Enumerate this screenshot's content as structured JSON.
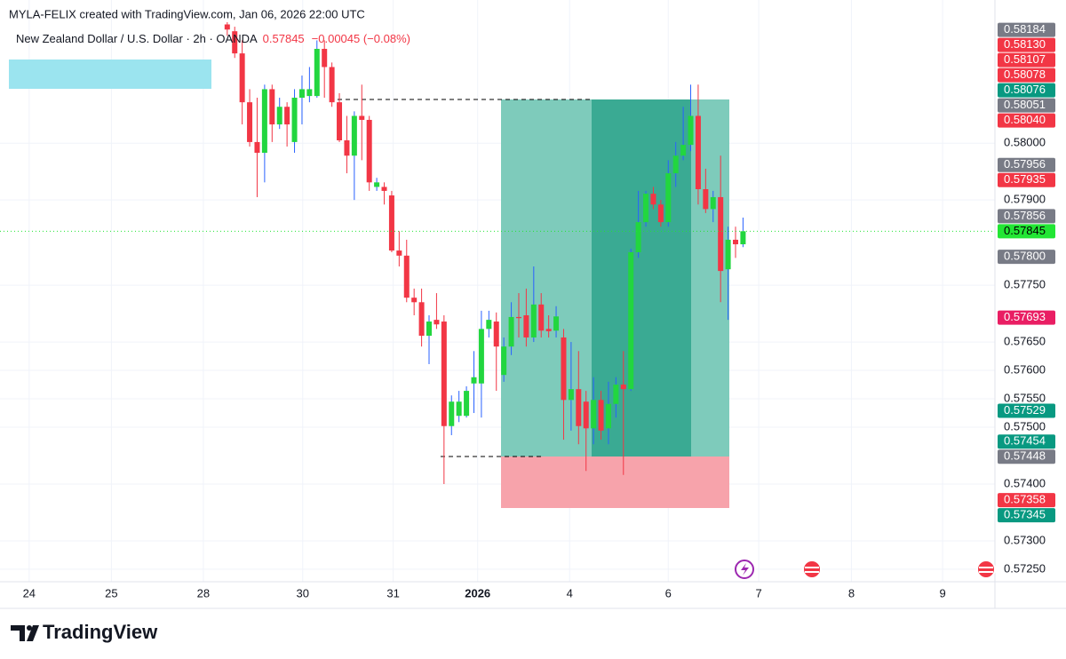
{
  "chart_data": {
    "type": "candlestick",
    "attribution": "MYLA-FELIX created with TradingView.com, Jan 06, 2026 22:00 UTC",
    "title": "New Zealand Dollar / U.S. Dollar · 2h · OANDA",
    "last_price": 0.57845,
    "change": "−0.00045 (−0.08%)",
    "brand": "TradingView",
    "up_color": "#22d63f",
    "down_color": "#f23645",
    "up_wick_color": "#2962ff",
    "last_price_color": "#22e634",
    "grid": true,
    "x": [
      0,
      1,
      2,
      3,
      4,
      5,
      6,
      7,
      8,
      9,
      10,
      11,
      12,
      13,
      14,
      15,
      16,
      17,
      18,
      19,
      20,
      21,
      22,
      23,
      24,
      25,
      26,
      27,
      28,
      29,
      30,
      31,
      32,
      33,
      34,
      35,
      36,
      37,
      38,
      39,
      40,
      41,
      42,
      43,
      44,
      45,
      46,
      47,
      48,
      49,
      50,
      51,
      52,
      53,
      54,
      55,
      56,
      57,
      58,
      59,
      60,
      61,
      62,
      63,
      64,
      65,
      66,
      67,
      68,
      69
    ],
    "open": [
      0.58209,
      0.58197,
      0.58158,
      0.58072,
      0.58002,
      0.57983,
      0.58095,
      0.58033,
      0.58064,
      0.58002,
      0.5808,
      0.58083,
      0.58083,
      0.58166,
      0.58134,
      0.58072,
      0.58005,
      0.57978,
      0.58048,
      0.58041,
      0.57923,
      0.57923,
      0.57908,
      0.57811,
      0.57802,
      0.57728,
      0.5772,
      0.57661,
      0.57689,
      0.57686,
      0.57502,
      0.5752,
      0.5752,
      0.57577,
      0.57577,
      0.57673,
      0.57686,
      0.57592,
      0.57642,
      0.57694,
      0.57697,
      0.57658,
      0.57716,
      0.57673,
      0.5767,
      0.57658,
      0.57548,
      0.57567,
      0.57545,
      0.57498,
      0.57548,
      0.57498,
      0.57541,
      0.57575,
      0.57567,
      0.57808,
      0.57861,
      0.57911,
      0.57892,
      0.57861,
      0.57947,
      0.57978,
      0.57997,
      0.58048,
      0.57919,
      0.57884,
      0.57905,
      0.57778,
      0.5783,
      0.57822
    ],
    "high": [
      0.58213,
      0.58205,
      0.58181,
      0.58095,
      0.5808,
      0.58103,
      0.58103,
      0.5808,
      0.58072,
      0.58095,
      0.58119,
      0.58134,
      0.58181,
      0.58181,
      0.58142,
      0.58088,
      0.58048,
      0.58056,
      0.58103,
      0.58048,
      0.57939,
      0.57931,
      0.57916,
      0.57845,
      0.5783,
      0.57744,
      0.57744,
      0.57697,
      0.57736,
      0.57697,
      0.57556,
      0.57564,
      0.57572,
      0.57634,
      0.57705,
      0.57705,
      0.57702,
      0.57658,
      0.5772,
      0.57736,
      0.57744,
      0.57783,
      0.57736,
      0.57697,
      0.57713,
      0.57673,
      0.5765,
      0.57634,
      0.57564,
      0.57588,
      0.57564,
      0.5758,
      0.57588,
      0.57634,
      0.57814,
      0.57916,
      0.57916,
      0.57923,
      0.579,
      0.5797,
      0.58002,
      0.58064,
      0.58103,
      0.58103,
      0.57955,
      0.57916,
      0.57978,
      0.57853,
      0.57853,
      0.57869
    ],
    "low": [
      0.58189,
      0.5815,
      0.58033,
      0.57994,
      0.57905,
      0.57931,
      0.58002,
      0.58025,
      0.57994,
      0.57983,
      0.58033,
      0.58072,
      0.5808,
      0.5808,
      0.58064,
      0.58002,
      0.57947,
      0.579,
      0.5797,
      0.57916,
      0.57916,
      0.57892,
      0.57808,
      0.57783,
      0.5772,
      0.57697,
      0.57642,
      0.57611,
      0.57673,
      0.574,
      0.57486,
      0.57509,
      0.57517,
      0.57525,
      0.57517,
      0.57658,
      0.57564,
      0.5758,
      0.57627,
      0.57658,
      0.57642,
      0.5765,
      0.57658,
      0.57658,
      0.57658,
      0.57478,
      0.57494,
      0.5747,
      0.57423,
      0.5747,
      0.57478,
      0.5747,
      0.57517,
      0.57416,
      0.57564,
      0.57798,
      0.57853,
      0.57884,
      0.57853,
      0.57853,
      0.57923,
      0.5797,
      0.57986,
      0.57892,
      0.57877,
      0.57861,
      0.5772,
      0.57689,
      0.57798,
      0.57817
    ],
    "close": [
      0.582,
      0.58158,
      0.58072,
      0.58002,
      0.57983,
      0.58095,
      0.58033,
      0.58064,
      0.58033,
      0.5808,
      0.58095,
      0.58095,
      0.58166,
      0.58134,
      0.58072,
      0.58005,
      0.57978,
      0.58048,
      0.58041,
      0.57931,
      0.57931,
      0.57916,
      0.57811,
      0.57802,
      0.57728,
      0.5772,
      0.57661,
      0.57686,
      0.57681,
      0.57502,
      0.57545,
      0.57545,
      0.57564,
      0.57588,
      0.57673,
      0.57689,
      0.57642,
      0.57642,
      0.57694,
      0.57692,
      0.57658,
      0.57716,
      0.5767,
      0.57669,
      0.57695,
      0.57548,
      0.57567,
      0.57502,
      0.57498,
      0.57548,
      0.57494,
      0.57541,
      0.57575,
      0.57567,
      0.57808,
      0.57861,
      0.57911,
      0.57892,
      0.57861,
      0.57947,
      0.57978,
      0.57997,
      0.58048,
      0.57919,
      0.57884,
      0.57905,
      0.57775,
      0.5783,
      0.57822,
      0.57845
    ],
    "xlim": [
      -30.4,
      102.7
    ],
    "xticks": [
      {
        "value": -26.5,
        "label": "24"
      },
      {
        "value": -15.5,
        "label": "25"
      },
      {
        "value": -3.2,
        "label": "28"
      },
      {
        "value": 10.1,
        "label": "30"
      },
      {
        "value": 22.2,
        "label": "31"
      },
      {
        "value": 33.5,
        "label": "2026"
      },
      {
        "value": 45.8,
        "label": "4"
      },
      {
        "value": 59,
        "label": "6"
      },
      {
        "value": 71.1,
        "label": "7"
      },
      {
        "value": 83.5,
        "label": "8"
      },
      {
        "value": 95.7,
        "label": "9"
      }
    ],
    "ylim": [
      0.57228,
      0.58252
    ],
    "yticks": [
      {
        "value": 0.58,
        "label": "0.58000"
      },
      {
        "value": 0.579,
        "label": "0.57900"
      },
      {
        "value": 0.5775,
        "label": "0.57750"
      },
      {
        "value": 0.5765,
        "label": "0.57650"
      },
      {
        "value": 0.576,
        "label": "0.57600"
      },
      {
        "value": 0.5755,
        "label": "0.57550"
      },
      {
        "value": 0.575,
        "label": "0.57500"
      },
      {
        "value": 0.574,
        "label": "0.57400"
      },
      {
        "value": 0.573,
        "label": "0.57300"
      },
      {
        "value": 0.5725,
        "label": "0.57250"
      }
    ],
    "price_tags": [
      {
        "value": 0.58184,
        "color": "#787b86"
      },
      {
        "value": {
          "value": 0.5813,
          "label": "0.58130"
        },
        "color": "#f23645"
      },
      {
        "value": 0.58107,
        "color": "#f23645"
      },
      {
        "value": 0.58078,
        "color": "#f23645"
      },
      {
        "value": 0.58076,
        "color": "#089981"
      },
      {
        "value": 0.58051,
        "color": "#787b86"
      },
      {
        "value": {
          "value": 0.5804,
          "label": "0.58040"
        },
        "color": "#f23645"
      },
      {
        "value": 0.57956,
        "color": "#787b86"
      },
      {
        "value": 0.57935,
        "color": "#f23645"
      },
      {
        "value": 0.57856,
        "color": "#787b86"
      },
      {
        "value": 0.57845,
        "color": "#22e634",
        "text_color": "#000000"
      },
      {
        "value": {
          "value": 0.578,
          "label": "0.57800"
        },
        "color": "#787b86"
      },
      {
        "value": 0.57693,
        "color": "#e91e63"
      },
      {
        "value": 0.57529,
        "color": "#089981"
      },
      {
        "value": 0.57454,
        "color": "#089981"
      },
      {
        "value": 0.57448,
        "color": "#787b86"
      },
      {
        "value": 0.57358,
        "color": "#f23645"
      },
      {
        "value": 0.57345,
        "color": "#089981"
      }
    ]
  }
}
